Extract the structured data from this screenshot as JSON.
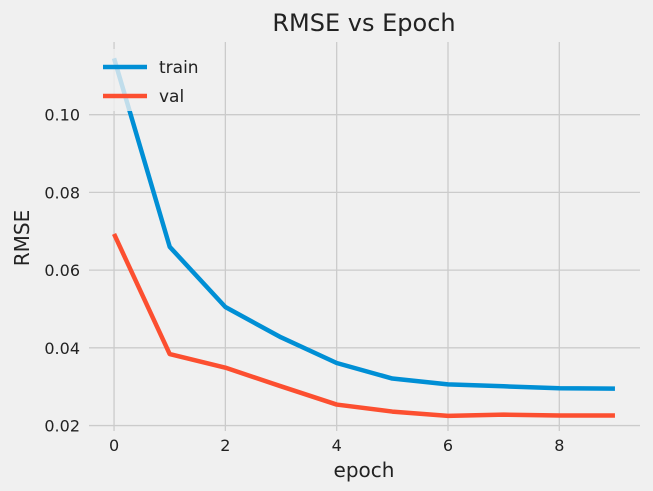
{
  "chart_data": {
    "type": "line",
    "title": "RMSE vs Epoch",
    "xlabel": "epoch",
    "ylabel": "RMSE",
    "x": [
      0,
      1,
      2,
      3,
      4,
      5,
      6,
      7,
      8,
      9
    ],
    "series": [
      {
        "name": "train",
        "color": "#008fd5",
        "values": [
          0.1145,
          0.066,
          0.0505,
          0.0427,
          0.0361,
          0.0321,
          0.0306,
          0.0301,
          0.0296,
          0.0295
        ]
      },
      {
        "name": "val",
        "color": "#fc4f30",
        "values": [
          0.0693,
          0.0384,
          0.0349,
          0.0301,
          0.0254,
          0.0236,
          0.0225,
          0.0228,
          0.0226,
          0.0226
        ]
      }
    ],
    "xlim": [
      -0.45,
      9.45
    ],
    "ylim": [
      0.0186,
      0.1187
    ],
    "xticks": [
      0,
      2,
      4,
      6,
      8
    ],
    "xtick_labels": [
      "0",
      "2",
      "4",
      "6",
      "8"
    ],
    "yticks": [
      0.02,
      0.04,
      0.06,
      0.08,
      0.1
    ],
    "ytick_labels": [
      "0.02",
      "0.04",
      "0.06",
      "0.08",
      "0.10"
    ],
    "grid": true,
    "legend_position": "top-left",
    "style": "fivethirtyeight",
    "background_color": "#f0f0f0",
    "grid_color": "#cbcbcb"
  }
}
